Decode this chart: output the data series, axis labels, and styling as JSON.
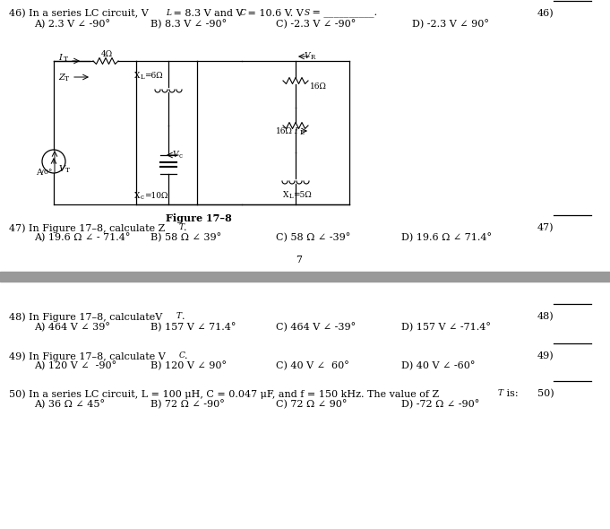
{
  "bg_color": "#ffffff",
  "divider_color": "#999999",
  "text_color": "#000000",
  "page_number": "7",
  "q46_line1": "46) In a series LC circuit, V",
  "q46_sub1": "L",
  "q46_line1b": " = 8.3 V and V",
  "q46_sub2": "C",
  "q46_line1c": " = 10.6 V. V",
  "q46_sub3": "S",
  "q46_line1d": " = __________.",
  "q46_answers": [
    "A) 2.3 V ∠ -90°",
    "B) 8.3 V ∠ -90°",
    "C) -2.3 V ∠ -90°",
    "D) -2.3 V ∠ 90°"
  ],
  "q47_line1": "47) In Figure 17–8, calculate Z",
  "q47_sub1": "T",
  "q47_line1b": ".",
  "q47_answers": [
    "A) 19.6 Ω ∠ - 71.4°",
    "B) 58 Ω ∠ 39°",
    "C) 58 Ω ∠ -39°",
    "D) 19.6 Ω ∠ 71.4°"
  ],
  "figure_label": "Figure 17–8",
  "q48_line1": "48) In Figure 17–8, calculateV",
  "q48_sub1": "T",
  "q48_line1b": ".",
  "q48_answers": [
    "A) 464 V ∠ 39°",
    "B) 157 V ∠ 71.4°",
    "C) 464 V ∠ -39°",
    "D) 157 V ∠ -71.4°"
  ],
  "q49_line1": "49) In Figure 17–8, calculate V",
  "q49_sub1": "C",
  "q49_line1b": ".",
  "q49_answers": [
    "A) 120 V ∠  -90°",
    "B) 120 V ∠ 90°",
    "C) 40 V ∠  60°",
    "D) 40 V ∠ -60°"
  ],
  "q50_line1": "50) In a series LC circuit, L = 100 μH, C = 0.047 μF, and f = 150 kHz. The value of Z",
  "q50_sub1": "T",
  "q50_line1b": " is:",
  "q50_answers": [
    "A) 36 Ω ∠ 45°",
    "B) 72 Ω ∠ -90°",
    "C) 72 Ω ∠ 90°",
    "D) -72 Ω ∠ -90°"
  ]
}
